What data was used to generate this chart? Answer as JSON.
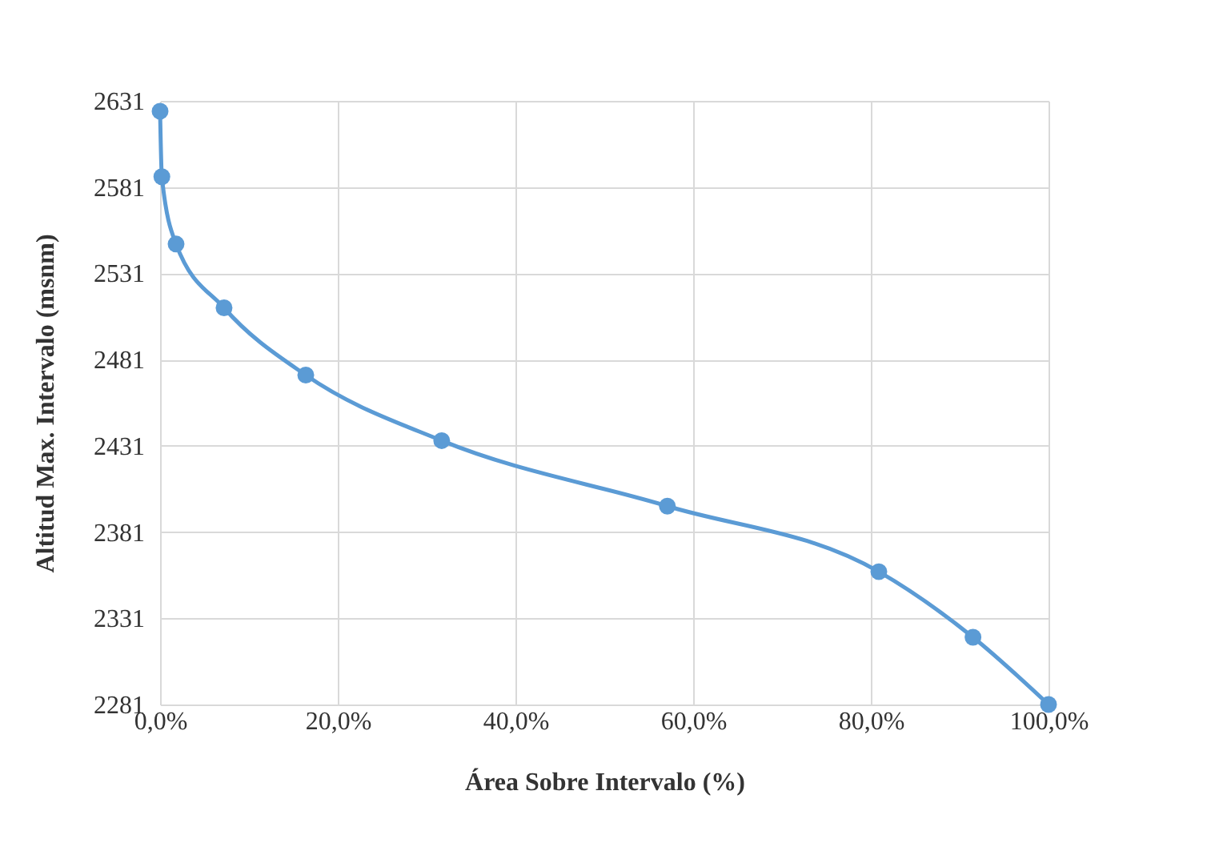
{
  "chart_data": {
    "type": "line",
    "xlabel": "Área Sobre Intervalo (%)",
    "ylabel": "Altitud Max. Intervalo (msnm)",
    "x": [
      0,
      0.2,
      1.8,
      7.2,
      16.4,
      31.7,
      57.1,
      80.9,
      91.5,
      100
    ],
    "series": [
      {
        "color": "#5b9bd5",
        "values": [
          2625,
          2587,
          2548,
          2511,
          2472,
          2434,
          2396,
          2358,
          2320,
          2281
        ]
      }
    ],
    "xlim": [
      0,
      100
    ],
    "xticks": [
      {
        "value": 0,
        "label": "0,0%"
      },
      {
        "value": 20,
        "label": "20,0%"
      },
      {
        "value": 40,
        "label": "40,0%"
      },
      {
        "value": 60,
        "label": "60,0%"
      },
      {
        "value": 80,
        "label": "80,0%"
      },
      {
        "value": 100,
        "label": "100,0%"
      }
    ],
    "ylim": [
      2281,
      2631
    ],
    "yticks": [
      2281,
      2331,
      2381,
      2431,
      2481,
      2531,
      2581,
      2631
    ],
    "grid": true,
    "marker": "circle",
    "line_style": "solid"
  }
}
